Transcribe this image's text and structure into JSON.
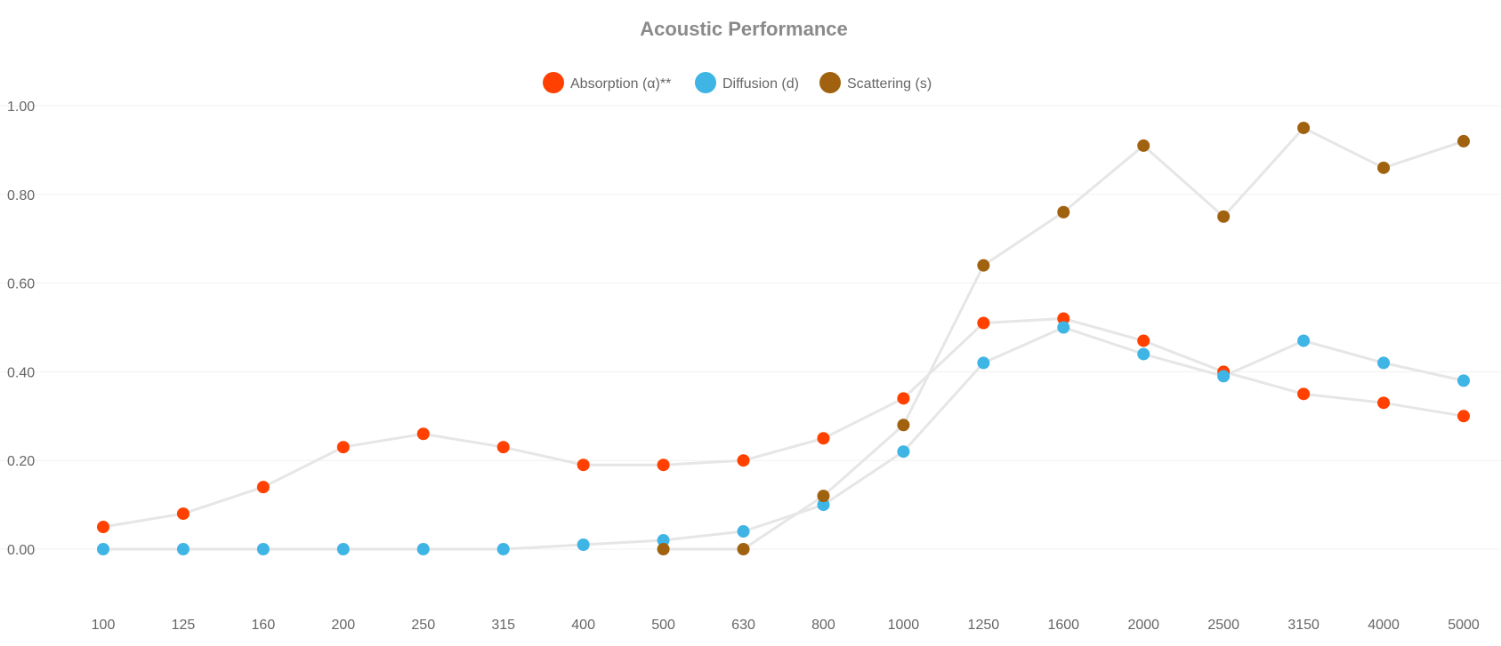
{
  "chart_data": {
    "type": "line",
    "title": "Acoustic Performance",
    "xlabel": "",
    "ylabel": "",
    "categories": [
      "100",
      "125",
      "160",
      "200",
      "250",
      "315",
      "400",
      "500",
      "630",
      "800",
      "1000",
      "1250",
      "1600",
      "2000",
      "2500",
      "3150",
      "4000",
      "5000"
    ],
    "ylim": [
      -0.1,
      1.0
    ],
    "yticks": [
      0.0,
      0.2,
      0.4,
      0.6,
      0.8,
      1.0
    ],
    "ytick_labels": [
      "0.00",
      "0.20",
      "0.40",
      "0.60",
      "0.80",
      "1.00"
    ],
    "grid": true,
    "legend_position": "top-center",
    "line_color": "#e6e6e6",
    "series": [
      {
        "name": "Absorption (α)**",
        "color": "#ff4000",
        "values": [
          0.05,
          0.08,
          0.14,
          0.23,
          0.26,
          0.23,
          0.19,
          0.19,
          0.2,
          0.25,
          0.34,
          0.51,
          0.52,
          0.47,
          0.4,
          0.35,
          0.33,
          0.3
        ]
      },
      {
        "name": "Diffusion (d)",
        "color": "#3fb5e5",
        "values": [
          0.0,
          0.0,
          0.0,
          0.0,
          0.0,
          0.0,
          0.01,
          0.02,
          0.04,
          0.1,
          0.22,
          0.42,
          0.5,
          0.44,
          0.39,
          0.47,
          0.42,
          0.38
        ]
      },
      {
        "name": "Scattering (s)",
        "color": "#a0620f",
        "values": [
          null,
          null,
          null,
          null,
          null,
          null,
          null,
          0.0,
          0.0,
          0.12,
          0.28,
          0.64,
          0.76,
          0.91,
          0.75,
          0.95,
          0.86,
          0.92
        ]
      }
    ]
  }
}
